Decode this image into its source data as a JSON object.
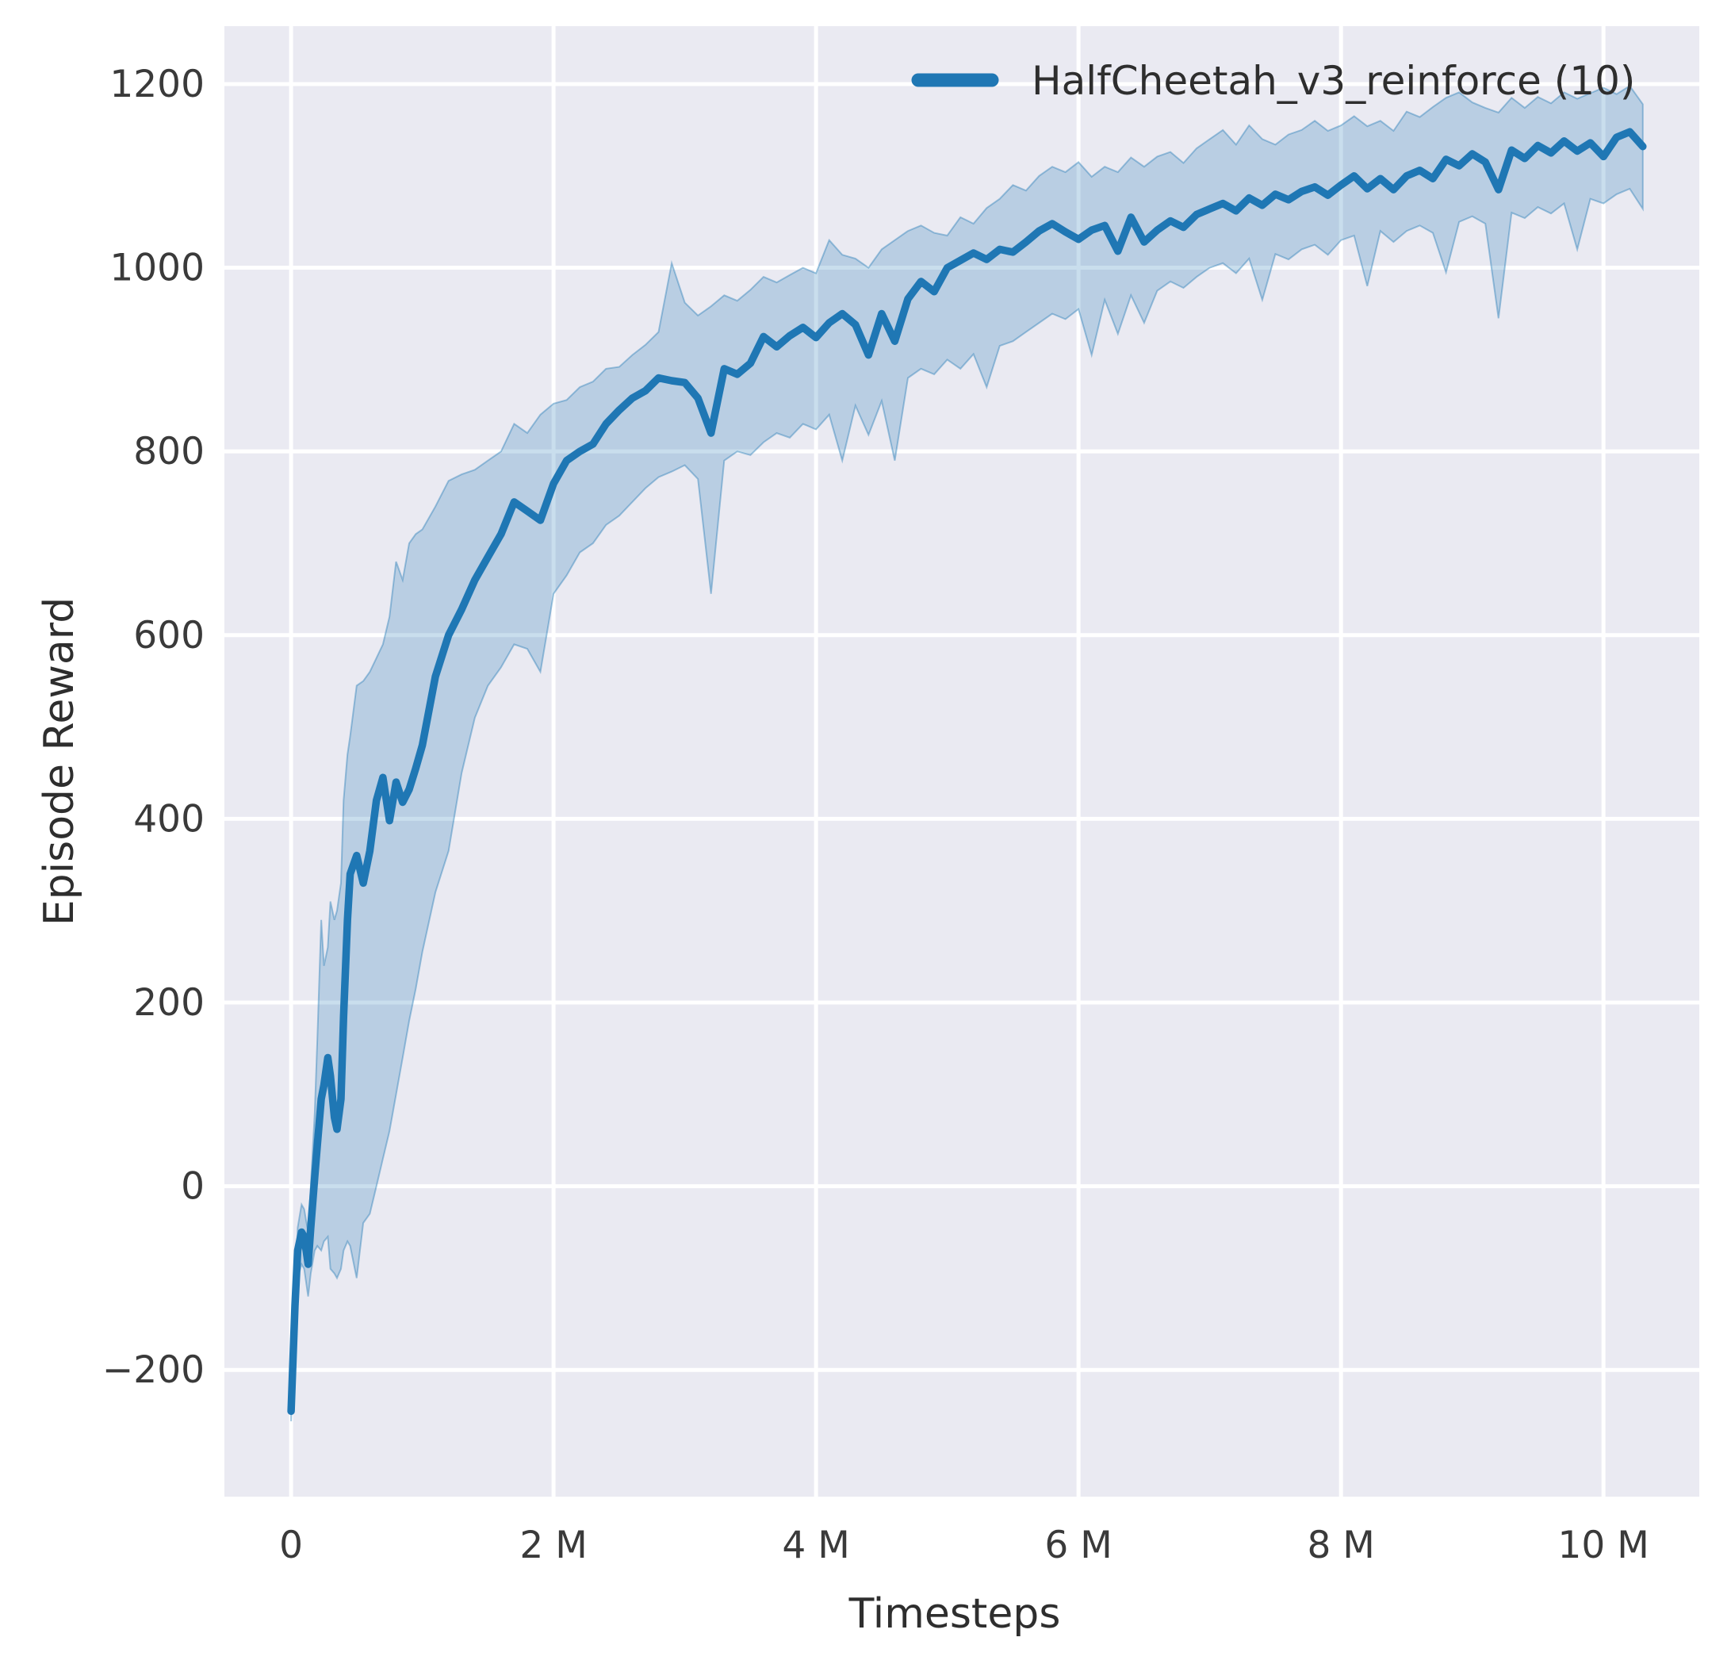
{
  "figure": {
    "background": "#ffffff",
    "panel_background": "#eaeaf2",
    "grid_color": "#ffffff",
    "text_color": "#2e2e2e",
    "tick_text_color": "#3a3a3a"
  },
  "chart_data": {
    "type": "line",
    "title": "",
    "xlabel": "Timesteps",
    "ylabel": "Episode Reward",
    "x_unit": "timesteps, shown in millions (M)",
    "grid": true,
    "legend_position": "upper right",
    "xlim_m": [
      -0.508,
      10.73
    ],
    "ylim": [
      -338,
      1263
    ],
    "x_ticks": [
      {
        "m": 0,
        "label": "0"
      },
      {
        "m": 2,
        "label": "2 M"
      },
      {
        "m": 4,
        "label": "4 M"
      },
      {
        "m": 6,
        "label": "6 M"
      },
      {
        "m": 8,
        "label": "8 M"
      },
      {
        "m": 10,
        "label": "10 M"
      }
    ],
    "y_ticks": [
      {
        "v": -200,
        "label": "−200"
      },
      {
        "v": 0,
        "label": "0"
      },
      {
        "v": 200,
        "label": "200"
      },
      {
        "v": 400,
        "label": "400"
      },
      {
        "v": 600,
        "label": "600"
      },
      {
        "v": 800,
        "label": "800"
      },
      {
        "v": 1000,
        "label": "1000"
      },
      {
        "v": 1200,
        "label": "1200"
      }
    ],
    "series": [
      {
        "name": "HalfCheetah_v3_reinforce (10)",
        "color": "#1f77b4",
        "band_opacity": 0.24,
        "x_m": [
          0,
          0.03,
          0.05,
          0.08,
          0.1,
          0.13,
          0.15,
          0.18,
          0.2,
          0.23,
          0.25,
          0.28,
          0.3,
          0.33,
          0.35,
          0.38,
          0.4,
          0.43,
          0.45,
          0.5,
          0.55,
          0.6,
          0.65,
          0.7,
          0.75,
          0.8,
          0.85,
          0.9,
          0.95,
          1.0,
          1.1,
          1.2,
          1.3,
          1.4,
          1.5,
          1.6,
          1.7,
          1.8,
          1.9,
          2.0,
          2.1,
          2.2,
          2.3,
          2.4,
          2.5,
          2.6,
          2.7,
          2.8,
          2.9,
          3.0,
          3.1,
          3.2,
          3.3,
          3.4,
          3.5,
          3.6,
          3.7,
          3.8,
          3.9,
          4.0,
          4.1,
          4.2,
          4.3,
          4.4,
          4.5,
          4.6,
          4.7,
          4.8,
          4.9,
          5.0,
          5.1,
          5.2,
          5.3,
          5.4,
          5.5,
          5.6,
          5.7,
          5.8,
          5.9,
          6.0,
          6.1,
          6.2,
          6.3,
          6.4,
          6.5,
          6.6,
          6.7,
          6.8,
          6.9,
          7.0,
          7.1,
          7.2,
          7.3,
          7.4,
          7.5,
          7.6,
          7.7,
          7.8,
          7.9,
          8.0,
          8.1,
          8.2,
          8.3,
          8.4,
          8.5,
          8.6,
          8.7,
          8.8,
          8.9,
          9.0,
          9.1,
          9.2,
          9.3,
          9.4,
          9.5,
          9.6,
          9.7,
          9.8,
          9.9,
          10.0,
          10.1,
          10.2,
          10.3
        ],
        "mean": [
          -245,
          -130,
          -70,
          -50,
          -55,
          -85,
          -45,
          10,
          45,
          95,
          110,
          140,
          120,
          75,
          62,
          95,
          185,
          290,
          340,
          360,
          330,
          365,
          420,
          445,
          398,
          440,
          418,
          432,
          455,
          480,
          555,
          600,
          628,
          660,
          685,
          710,
          745,
          735,
          725,
          765,
          790,
          800,
          808,
          830,
          845,
          858,
          866,
          880,
          877,
          875,
          858,
          820,
          890,
          884,
          896,
          925,
          914,
          926,
          935,
          924,
          940,
          950,
          938,
          905,
          950,
          920,
          966,
          985,
          974,
          1000,
          1008,
          1016,
          1009,
          1020,
          1017,
          1028,
          1040,
          1048,
          1039,
          1031,
          1041,
          1046,
          1018,
          1055,
          1028,
          1041,
          1051,
          1044,
          1058,
          1064,
          1070,
          1062,
          1076,
          1068,
          1080,
          1074,
          1083,
          1088,
          1079,
          1090,
          1100,
          1086,
          1097,
          1085,
          1100,
          1106,
          1097,
          1118,
          1111,
          1124,
          1115,
          1085,
          1128,
          1119,
          1133,
          1125,
          1138,
          1127,
          1136,
          1121,
          1142,
          1148,
          1132
        ],
        "band_upper": [
          -238,
          -115,
          -45,
          -20,
          -25,
          -50,
          0,
          80,
          160,
          290,
          240,
          260,
          310,
          290,
          300,
          330,
          420,
          470,
          490,
          545,
          550,
          560,
          575,
          590,
          620,
          680,
          660,
          700,
          710,
          715,
          740,
          768,
          775,
          780,
          790,
          800,
          830,
          820,
          840,
          852,
          856,
          870,
          876,
          890,
          892,
          905,
          916,
          930,
          1005,
          962,
          948,
          958,
          970,
          964,
          976,
          990,
          984,
          992,
          1000,
          994,
          1030,
          1014,
          1010,
          1000,
          1020,
          1030,
          1040,
          1046,
          1038,
          1035,
          1055,
          1048,
          1065,
          1075,
          1090,
          1084,
          1100,
          1110,
          1104,
          1115,
          1099,
          1110,
          1104,
          1120,
          1110,
          1121,
          1126,
          1114,
          1130,
          1140,
          1150,
          1134,
          1155,
          1140,
          1134,
          1145,
          1150,
          1160,
          1149,
          1155,
          1165,
          1154,
          1160,
          1149,
          1170,
          1164,
          1175,
          1185,
          1191,
          1180,
          1174,
          1169,
          1185,
          1174,
          1186,
          1179,
          1191,
          1184,
          1190,
          1196,
          1189,
          1198,
          1178
        ],
        "band_lower": [
          -256,
          -148,
          -100,
          -85,
          -90,
          -120,
          -95,
          -70,
          -65,
          -70,
          -60,
          -55,
          -90,
          -95,
          -100,
          -90,
          -70,
          -60,
          -65,
          -100,
          -40,
          -30,
          0,
          30,
          60,
          100,
          140,
          180,
          215,
          255,
          320,
          365,
          450,
          510,
          545,
          565,
          590,
          585,
          560,
          645,
          665,
          690,
          700,
          720,
          730,
          745,
          760,
          772,
          778,
          785,
          770,
          645,
          790,
          800,
          796,
          810,
          820,
          815,
          830,
          824,
          840,
          790,
          850,
          818,
          855,
          790,
          880,
          890,
          884,
          900,
          890,
          906,
          870,
          915,
          920,
          930,
          940,
          950,
          944,
          955,
          905,
          965,
          928,
          970,
          940,
          975,
          985,
          978,
          990,
          1000,
          1005,
          994,
          1010,
          965,
          1015,
          1009,
          1020,
          1025,
          1014,
          1030,
          1035,
          980,
          1040,
          1028,
          1040,
          1046,
          1038,
          995,
          1050,
          1056,
          1048,
          945,
          1060,
          1054,
          1066,
          1059,
          1070,
          1020,
          1075,
          1070,
          1080,
          1086,
          1064
        ]
      }
    ]
  }
}
